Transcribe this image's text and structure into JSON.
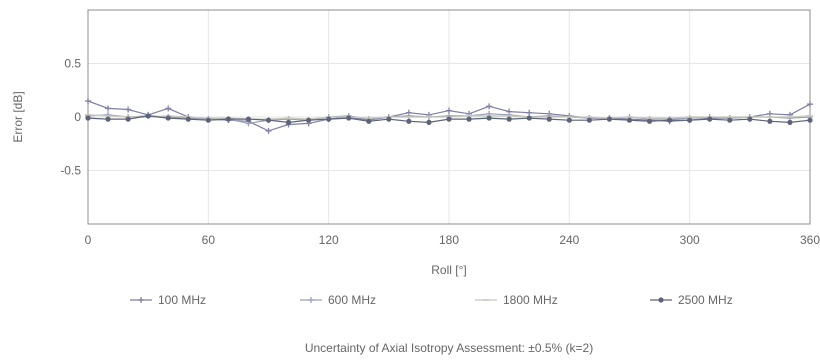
{
  "chart_data": {
    "type": "line",
    "title": "",
    "xlabel": "Roll [°]",
    "ylabel": "Error [dB]",
    "xlim": [
      0,
      360
    ],
    "ylim": [
      -1,
      1
    ],
    "xticks": [
      "0",
      "60",
      "120",
      "180",
      "240",
      "300",
      "360"
    ],
    "yticks": [
      "0.5",
      "0",
      "-0.5"
    ],
    "grid": true,
    "legend_position": "bottom",
    "x": [
      0,
      10,
      20,
      30,
      40,
      50,
      60,
      70,
      80,
      90,
      100,
      110,
      120,
      130,
      140,
      150,
      160,
      170,
      180,
      190,
      200,
      210,
      220,
      230,
      240,
      250,
      260,
      270,
      280,
      290,
      300,
      310,
      320,
      330,
      340,
      350,
      360
    ],
    "series": [
      {
        "name": "100 MHz",
        "color": "#7f7fa6",
        "marker": "plus",
        "values": [
          0.15,
          0.08,
          0.07,
          0.02,
          0.08,
          0.0,
          -0.02,
          -0.03,
          -0.04,
          -0.13,
          -0.07,
          -0.06,
          -0.02,
          0.0,
          -0.03,
          0.0,
          0.04,
          0.02,
          0.06,
          0.03,
          0.1,
          0.05,
          0.04,
          0.03,
          0.01,
          -0.01,
          -0.01,
          -0.02,
          -0.03,
          -0.04,
          -0.03,
          -0.01,
          -0.01,
          0.0,
          0.03,
          0.02,
          0.12
        ]
      },
      {
        "name": "600 MHz",
        "color": "#9aa0b8",
        "marker": "plus",
        "values": [
          0.01,
          0.02,
          0.0,
          0.01,
          0.0,
          -0.01,
          -0.02,
          -0.02,
          -0.06,
          -0.03,
          -0.02,
          -0.03,
          0.0,
          0.01,
          -0.02,
          0.0,
          0.01,
          0.0,
          0.01,
          0.01,
          0.03,
          0.02,
          0.0,
          0.01,
          0.0,
          -0.01,
          -0.01,
          0.0,
          -0.02,
          -0.02,
          -0.01,
          0.0,
          -0.01,
          0.0,
          0.0,
          -0.01,
          0.0
        ]
      },
      {
        "name": "1800 MHz",
        "color": "#c8c8bc",
        "marker": "dash",
        "values": [
          0.02,
          0.01,
          0.0,
          0.0,
          0.01,
          0.0,
          -0.01,
          -0.01,
          -0.02,
          -0.02,
          -0.01,
          -0.02,
          0.0,
          0.0,
          -0.01,
          0.0,
          0.0,
          0.0,
          0.0,
          0.01,
          0.01,
          0.01,
          0.0,
          0.0,
          0.0,
          0.0,
          -0.01,
          0.0,
          -0.01,
          -0.01,
          0.0,
          0.0,
          0.0,
          0.0,
          0.0,
          0.0,
          0.01
        ]
      },
      {
        "name": "2500 MHz",
        "color": "#5c6478",
        "marker": "dot",
        "values": [
          -0.01,
          -0.02,
          -0.02,
          0.01,
          -0.01,
          -0.02,
          -0.03,
          -0.02,
          -0.02,
          -0.03,
          -0.05,
          -0.03,
          -0.02,
          -0.01,
          -0.04,
          -0.02,
          -0.04,
          -0.05,
          -0.02,
          -0.02,
          -0.01,
          -0.02,
          -0.01,
          -0.02,
          -0.03,
          -0.03,
          -0.02,
          -0.03,
          -0.04,
          -0.03,
          -0.03,
          -0.02,
          -0.03,
          -0.02,
          -0.04,
          -0.05,
          -0.03
        ]
      }
    ],
    "note": "Uncertainty of Axial Isotropy Assessment: ±0.5% (k=2)"
  }
}
